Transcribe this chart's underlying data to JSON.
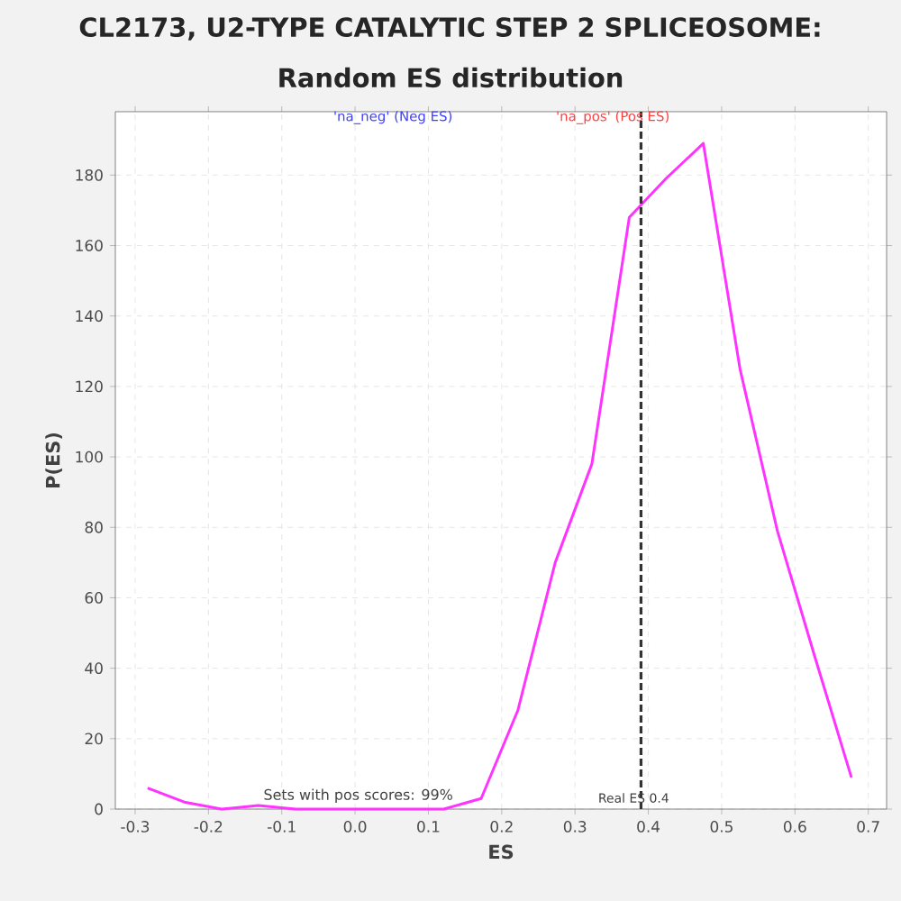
{
  "chart_data": {
    "type": "line",
    "title": "CL2173, U2-TYPE CATALYTIC STEP 2 SPLICEOSOME:",
    "subtitle": "Random ES distribution",
    "xlabel": "ES",
    "ylabel": "P(ES)",
    "x": [
      -0.283,
      -0.233,
      -0.182,
      -0.132,
      -0.081,
      -0.031,
      0.02,
      0.071,
      0.121,
      0.172,
      0.222,
      0.273,
      0.323,
      0.374,
      0.424,
      0.475,
      0.525,
      0.576,
      0.626,
      0.677
    ],
    "series": [
      {
        "color": "#ff33ff",
        "values": [
          6,
          2,
          0,
          1,
          0,
          0,
          0,
          0,
          0,
          3,
          28,
          70,
          98,
          168,
          179,
          189,
          125,
          79,
          44,
          9
        ]
      }
    ],
    "xlim": [
      -0.327,
      0.725
    ],
    "ylim": [
      0,
      198
    ],
    "xticks": [
      -0.3,
      -0.2,
      -0.1,
      {
        "value": 0,
        "label": "0.0"
      },
      0.1,
      0.2,
      0.3,
      0.4,
      0.5,
      0.6,
      0.7
    ],
    "yticks": [
      0,
      20,
      40,
      60,
      80,
      100,
      120,
      140,
      160,
      180
    ],
    "grid": true,
    "marker": "none",
    "line_style": "solid",
    "ref_lines": [
      {
        "axis": "x",
        "value": 0.39,
        "label": "Real ES 0.4",
        "color": "#333333",
        "line_style": "dashed"
      }
    ],
    "annotations": [
      "'na_neg' (Neg ES)",
      "'na_pos' (Pos ES)",
      "Sets with pos scores: 99%"
    ]
  }
}
